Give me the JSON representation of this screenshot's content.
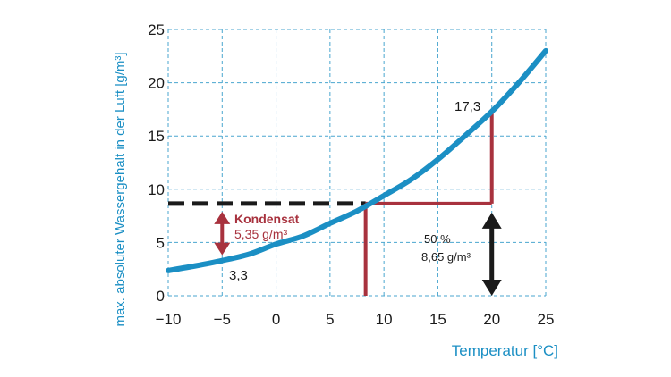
{
  "chart_data": {
    "type": "line",
    "xlabel": "Temperatur [°C]",
    "ylabel": "max. absoluter Wassergehalt in der Luft [g/m³]",
    "xlim": [
      -10,
      25
    ],
    "ylim": [
      0,
      25
    ],
    "x_ticks": [
      "−10",
      "−5",
      "0",
      "5",
      "10",
      "15",
      "20",
      "25"
    ],
    "y_ticks": [
      "0",
      "5",
      "10",
      "15",
      "20",
      "25"
    ],
    "grid": true,
    "series": [
      {
        "color": "#1b8fc4",
        "x": [
          -10,
          -7.5,
          -5,
          -2.5,
          0,
          2.5,
          5,
          7.5,
          10,
          12.5,
          15,
          17.5,
          20,
          22.5,
          25
        ],
        "y": [
          2.36,
          2.8,
          3.3,
          3.9,
          4.85,
          5.6,
          6.8,
          7.95,
          9.4,
          10.9,
          12.8,
          15.0,
          17.3,
          20.0,
          23.0
        ]
      }
    ],
    "annotations": {
      "label_17_3": "17,3",
      "label_3_3": "3,3",
      "kondensat_title": "Kondensat",
      "kondensat_value": "5,35 g/m³",
      "percent_label": "50 %",
      "percent_value": "8,65 g/m³",
      "dew_point_x": 8.3,
      "level_y": 8.65,
      "peak_x": 20,
      "peak_y": 17.3,
      "low_x": -5,
      "low_y": 3.3
    },
    "colors": {
      "curve": "#1b8fc4",
      "grid": "#4aa6cf",
      "red": "#a8323e",
      "black": "#1a1a1a"
    }
  }
}
